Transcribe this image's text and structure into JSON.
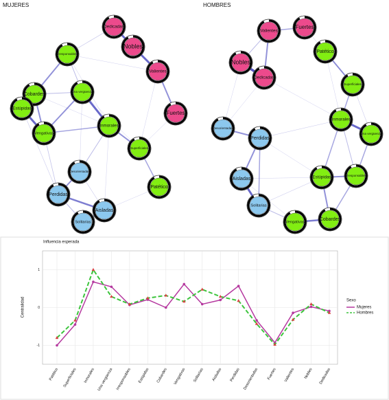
{
  "networks": [
    {
      "title": "MUJERES",
      "nodes": [
        {
          "label": "Dedicadas",
          "color": "#ec4a8c"
        },
        {
          "label": "Nobles",
          "color": "#ec4a8c"
        },
        {
          "label": "Valientes",
          "color": "#ec4a8c"
        },
        {
          "label": "Fuertes",
          "color": "#ec4a8c"
        },
        {
          "label": "Irresponsables",
          "color": "#82ee12"
        },
        {
          "label": "Cobardes",
          "color": "#82ee12"
        },
        {
          "label": "Una vergüenza",
          "color": "#82ee12"
        },
        {
          "label": "Estúpidas",
          "color": "#82ee12"
        },
        {
          "label": "Vengativas",
          "color": "#82ee12"
        },
        {
          "label": "Inmorales",
          "color": "#82ee12"
        },
        {
          "label": "Superficiales",
          "color": "#82ee12"
        },
        {
          "label": "Patético",
          "color": "#82ee12"
        },
        {
          "label": "Desorientadas",
          "color": "#8cc8ee"
        },
        {
          "label": "Perdidas",
          "color": "#8cc8ee"
        },
        {
          "label": "Aisladas",
          "color": "#8cc8ee"
        },
        {
          "label": "Solitarias",
          "color": "#8cc8ee"
        }
      ]
    },
    {
      "title": "HOMBRES",
      "nodes": [
        {
          "label": "Valientes",
          "color": "#ec4a8c"
        },
        {
          "label": "Fuertes",
          "color": "#ec4a8c"
        },
        {
          "label": "Nobles",
          "color": "#ec4a8c"
        },
        {
          "label": "Dedicadas",
          "color": "#ec4a8c"
        },
        {
          "label": "Patético",
          "color": "#82ee12"
        },
        {
          "label": "Superficiales",
          "color": "#82ee12"
        },
        {
          "label": "Inmorales",
          "color": "#82ee12"
        },
        {
          "label": "Una vergüenza",
          "color": "#82ee12"
        },
        {
          "label": "Desorientadas",
          "color": "#8cc8ee"
        },
        {
          "label": "Perdidas",
          "color": "#8cc8ee"
        },
        {
          "label": "Aisladas",
          "color": "#8cc8ee"
        },
        {
          "label": "Estúpidas",
          "color": "#82ee12"
        },
        {
          "label": "Irresponsables",
          "color": "#82ee12"
        },
        {
          "label": "Solitarias",
          "color": "#8cc8ee"
        },
        {
          "label": "Cobardes",
          "color": "#82ee12"
        },
        {
          "label": "Vengativas",
          "color": "#82ee12"
        }
      ]
    }
  ],
  "chart_data": {
    "type": "line",
    "title": "Influencia esperada",
    "y_label": "Centralidad",
    "legend_title": "Sexo",
    "categories": [
      "Patético",
      "Superficiales",
      "Inmorales",
      "Una vergüenza",
      "Irresponsables",
      "Estúpidas",
      "Cobardes",
      "Vengativas",
      "Solitarias",
      "Aisladas",
      "Perdidas",
      "Desorientadas",
      "Fuertes",
      "Valientes",
      "Nobles",
      "Dedicadas"
    ],
    "series": [
      {
        "name": "Mujeres",
        "color": "#b5389f",
        "marker_color": "#b5389f",
        "dashed": false,
        "values": [
          -1.0,
          -0.45,
          0.68,
          0.55,
          0.07,
          0.21,
          0.0,
          0.62,
          0.09,
          0.2,
          0.57,
          -0.34,
          -0.93,
          -0.14,
          0.02,
          -0.09
        ]
      },
      {
        "name": "Hombres",
        "color": "#3cc43c",
        "marker_color": "#d94040",
        "dashed": true,
        "values": [
          -0.8,
          -0.34,
          1.0,
          0.29,
          0.09,
          0.25,
          0.32,
          0.16,
          0.48,
          0.29,
          0.18,
          -0.43,
          -0.98,
          -0.32,
          0.09,
          -0.14
        ]
      }
    ],
    "ylim": [
      -1.5,
      1.5
    ],
    "yticks": [
      -1,
      0,
      1
    ],
    "grid": true
  }
}
